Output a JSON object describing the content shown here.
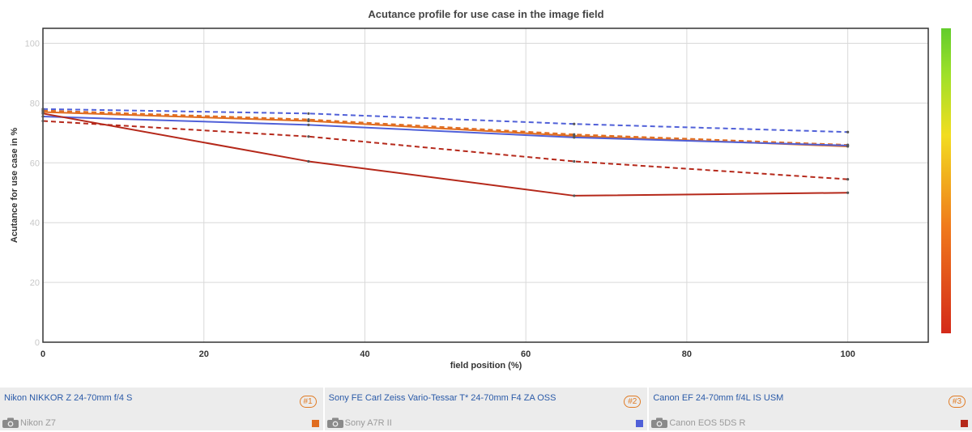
{
  "chart_data": {
    "type": "line",
    "title": "Acutance profile for use case in the image field",
    "xlabel": "field position (%)",
    "ylabel": "Acutance for use case in %",
    "xlim": [
      0,
      110
    ],
    "ylim": [
      0,
      105
    ],
    "x_ticks": [
      0,
      20,
      40,
      60,
      80,
      100
    ],
    "y_ticks": [
      0,
      20,
      40,
      60,
      80,
      100
    ],
    "grid": true,
    "colorbar": {
      "gradient": [
        "#d42a1a",
        "#f07a1c",
        "#f2dd20",
        "#9ee029",
        "#62cc2c"
      ]
    },
    "series": [
      {
        "color": "#e06c1f",
        "style": "solid",
        "x": [
          0,
          33,
          66,
          100
        ],
        "y": [
          77,
          74,
          69,
          65.5
        ]
      },
      {
        "color": "#e06c1f",
        "style": "dashed",
        "x": [
          0,
          33,
          66,
          100
        ],
        "y": [
          77.5,
          74.5,
          69.5,
          66
        ]
      },
      {
        "color": "#5060d8",
        "style": "solid",
        "x": [
          0,
          33,
          66,
          100
        ],
        "y": [
          75.5,
          72.7,
          68.5,
          65.8
        ]
      },
      {
        "color": "#5060d8",
        "style": "dashed",
        "x": [
          0,
          33,
          66,
          100
        ],
        "y": [
          78,
          76.5,
          73,
          70.3
        ]
      },
      {
        "color": "#b5281a",
        "style": "solid",
        "x": [
          0,
          33,
          66,
          100
        ],
        "y": [
          76.5,
          60.5,
          49,
          50
        ]
      },
      {
        "color": "#b5281a",
        "style": "dashed",
        "x": [
          0,
          33,
          66,
          100
        ],
        "y": [
          74,
          68.8,
          60.5,
          54.5
        ]
      }
    ]
  },
  "legend": [
    {
      "lens": "Nikon NIKKOR Z 24-70mm f/4 S",
      "rank": "#1",
      "camera": "Nikon Z7",
      "color": "#e06c1f"
    },
    {
      "lens": "Sony FE Carl Zeiss Vario-Tessar T* 24-70mm F4 ZA OSS",
      "rank": "#2",
      "camera": "Sony A7R II",
      "color": "#5060d8"
    },
    {
      "lens": "Canon EF 24-70mm f/4L IS USM",
      "rank": "#3",
      "camera": "Canon EOS 5DS R",
      "color": "#b5281a"
    }
  ]
}
